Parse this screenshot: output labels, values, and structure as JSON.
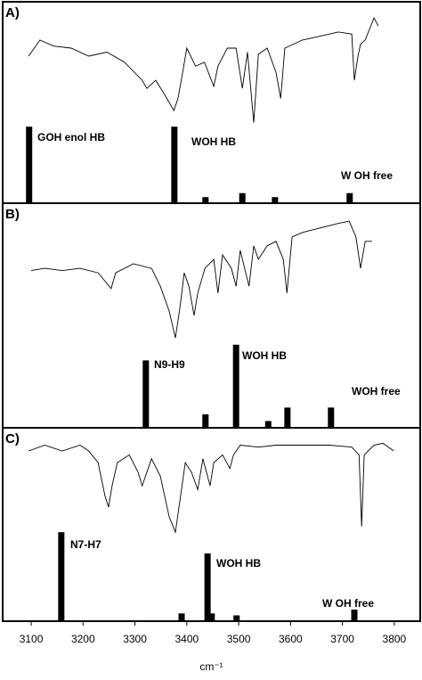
{
  "chart_data": [
    {
      "type": "stick",
      "label": "A)",
      "xlim": [
        3045,
        3850
      ],
      "ylim": [
        0,
        100
      ],
      "color": "#000000",
      "trace": {
        "x": [
          3095,
          3117,
          3143,
          3177,
          3211,
          3246,
          3280,
          3314,
          3323,
          3340,
          3357,
          3375,
          3383,
          3392,
          3400,
          3417,
          3434,
          3452,
          3460,
          3478,
          3495,
          3507,
          3517,
          3529,
          3538,
          3555,
          3572,
          3581,
          3589,
          3606,
          3623,
          3658,
          3692,
          3718,
          3723,
          3730,
          3735,
          3744,
          3761,
          3769
        ],
        "values": [
          73,
          81,
          78,
          77,
          73,
          75,
          70,
          61,
          57,
          61,
          54,
          46,
          52,
          65,
          77,
          68,
          70,
          58,
          68,
          77,
          77,
          57,
          75,
          40,
          74,
          77,
          65,
          52,
          77,
          79,
          81,
          83,
          85,
          84,
          61,
          73,
          79,
          81,
          92,
          88
        ]
      },
      "sticks": {
        "x": [
          3096,
          3376,
          3436,
          3507,
          3570,
          3714
        ],
        "values": [
          38,
          38,
          3,
          5,
          3,
          5
        ]
      },
      "annotations": [
        "GOH enol HB",
        "WOH HB",
        "W OH free"
      ]
    },
    {
      "type": "stick",
      "label": "B)",
      "xlim": [
        3045,
        3850
      ],
      "ylim": [
        0,
        100
      ],
      "color": "#000000",
      "trace": {
        "x": [
          3100,
          3126,
          3160,
          3194,
          3229,
          3254,
          3263,
          3297,
          3332,
          3349,
          3366,
          3378,
          3387,
          3395,
          3404,
          3414,
          3421,
          3435,
          3452,
          3460,
          3469,
          3486,
          3495,
          3503,
          3520,
          3529,
          3538,
          3555,
          3572,
          3586,
          3593,
          3603,
          3623,
          3658,
          3692,
          3713,
          3726,
          3735,
          3744,
          3757
        ],
        "values": [
          70,
          71,
          70,
          71,
          69,
          62,
          69,
          73,
          71,
          63,
          52,
          40,
          54,
          69,
          63,
          50,
          60,
          71,
          75,
          60,
          77,
          71,
          63,
          79,
          63,
          81,
          75,
          81,
          83,
          75,
          60,
          85,
          87,
          89,
          91,
          92,
          85,
          71,
          83,
          83
        ]
      },
      "sticks": {
        "x": [
          3321,
          3495,
          3436,
          3557,
          3594,
          3678
        ],
        "values": [
          30,
          37,
          6,
          3,
          9,
          9
        ]
      },
      "annotations": [
        "N9-H9",
        "WOH HB",
        "WOH free"
      ]
    },
    {
      "type": "stick",
      "label": "C)",
      "xlim": [
        3045,
        3850
      ],
      "ylim": [
        0,
        100
      ],
      "color": "#000000",
      "trace": {
        "x": [
          3095,
          3126,
          3160,
          3194,
          3211,
          3229,
          3242,
          3249,
          3256,
          3266,
          3289,
          3306,
          3314,
          3332,
          3349,
          3366,
          3378,
          3387,
          3397,
          3409,
          3421,
          3431,
          3445,
          3452,
          3469,
          3483,
          3490,
          3503,
          3538,
          3572,
          3606,
          3641,
          3675,
          3718,
          3732,
          3737,
          3742,
          3761,
          3778,
          3799
        ],
        "values": [
          88,
          91,
          88,
          91,
          88,
          82,
          65,
          59,
          70,
          82,
          86,
          77,
          70,
          84,
          75,
          54,
          46,
          63,
          82,
          77,
          68,
          84,
          70,
          82,
          86,
          79,
          86,
          91,
          90,
          91,
          91,
          91,
          91,
          90,
          86,
          49,
          86,
          91,
          92,
          88
        ]
      },
      "sticks": {
        "x": [
          3158,
          3440,
          3390,
          3448,
          3496,
          3723
        ],
        "values": [
          46,
          35,
          4,
          4,
          3,
          6
        ]
      },
      "annotations": [
        "N7-H7",
        "WOH HB",
        "W OH free"
      ],
      "xticks": [
        3100,
        3200,
        3300,
        3400,
        3500,
        3600,
        3700,
        3800
      ],
      "xlabel": "cm⁻¹"
    }
  ]
}
